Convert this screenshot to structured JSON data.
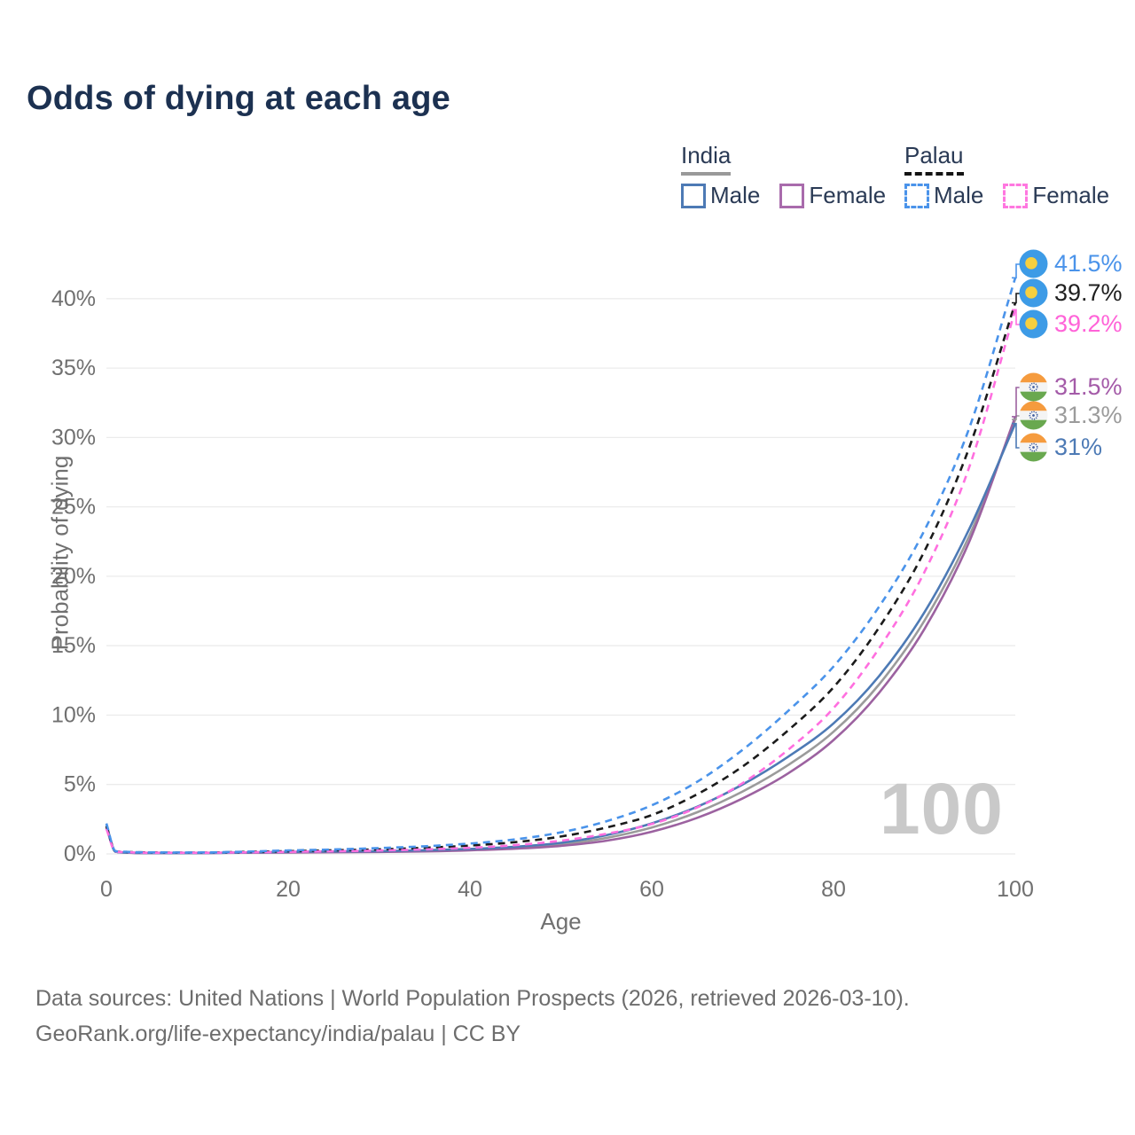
{
  "title": "Odds of dying at each age",
  "watermark": "100",
  "colors": {
    "title_text": "#1c3151",
    "legend_text": "#2a3a55",
    "axis_text": "#707070",
    "gridline": "#ebebeb",
    "watermark": "#c9c9c9",
    "footer_text": "#6d6d6d",
    "india_underline": "#999999",
    "palau_underline": "#141414"
  },
  "legend": {
    "groups": [
      {
        "name": "India",
        "line_style": "solid",
        "underline_color": "#999999",
        "items": [
          {
            "label": "Male",
            "color": "#4d7ab5"
          },
          {
            "label": "Female",
            "color": "#a96bac"
          }
        ]
      },
      {
        "name": "Palau",
        "line_style": "dashed",
        "underline_color": "#141414",
        "items": [
          {
            "label": "Male",
            "color": "#4a93ea"
          },
          {
            "label": "Female",
            "color": "#ff77e0"
          }
        ]
      }
    ]
  },
  "chart_data": {
    "type": "line",
    "title": "Odds of dying at each age",
    "xlabel": "Age",
    "ylabel": "Probability of dying",
    "xlim": [
      0,
      100
    ],
    "ylim": [
      0,
      43
    ],
    "grid": true,
    "legend_position": "top-right",
    "x_ticks": [
      0,
      20,
      40,
      60,
      80,
      100
    ],
    "y_ticks": [
      0,
      5,
      10,
      15,
      20,
      25,
      30,
      35,
      40
    ],
    "y_tick_labels": [
      "0%",
      "5%",
      "10%",
      "15%",
      "20%",
      "25%",
      "30%",
      "35%",
      "40%"
    ],
    "x": [
      0,
      1,
      2,
      3,
      5,
      10,
      15,
      20,
      25,
      30,
      35,
      40,
      45,
      50,
      55,
      60,
      65,
      70,
      75,
      80,
      85,
      90,
      95,
      100
    ],
    "series": [
      {
        "name": "india-total",
        "country": "India",
        "sex": "Total",
        "line": "solid",
        "color": "#9b9b9b",
        "flag": "india",
        "end_label": "31.3%",
        "label_color": "#9b9b9b",
        "values": [
          2.0,
          0.16,
          0.1,
          0.075,
          0.065,
          0.065,
          0.09,
          0.13,
          0.15,
          0.17,
          0.22,
          0.31,
          0.45,
          0.69,
          1.15,
          1.9,
          3.0,
          4.5,
          6.4,
          8.8,
          12.2,
          16.8,
          23.0,
          31.3
        ]
      },
      {
        "name": "india-female",
        "country": "India",
        "sex": "Female",
        "line": "solid",
        "color": "#9c62a0",
        "flag": "india",
        "end_label": "31.5%",
        "label_color": "#a45ba8",
        "values": [
          1.9,
          0.16,
          0.1,
          0.07,
          0.06,
          0.06,
          0.08,
          0.1,
          0.12,
          0.14,
          0.18,
          0.26,
          0.38,
          0.58,
          0.95,
          1.6,
          2.6,
          4.0,
          5.8,
          8.2,
          11.6,
          16.2,
          22.6,
          31.5
        ]
      },
      {
        "name": "india-male",
        "country": "India",
        "sex": "Male",
        "line": "solid",
        "color": "#4d7ab5",
        "flag": "india",
        "end_label": "31%",
        "label_color": "#4d7ab5",
        "values": [
          2.1,
          0.16,
          0.1,
          0.08,
          0.07,
          0.07,
          0.1,
          0.15,
          0.18,
          0.2,
          0.26,
          0.36,
          0.52,
          0.8,
          1.35,
          2.2,
          3.4,
          5.0,
          7.0,
          9.4,
          12.8,
          17.4,
          23.5,
          31.0
        ]
      },
      {
        "name": "palau-total",
        "country": "Palau",
        "sex": "Total",
        "line": "dashed",
        "color": "#1b1b1b",
        "flag": "palau",
        "end_label": "39.7%",
        "label_color": "#1f1f1f",
        "values": [
          2.0,
          0.19,
          0.15,
          0.12,
          0.1,
          0.09,
          0.14,
          0.2,
          0.26,
          0.33,
          0.44,
          0.6,
          0.85,
          1.25,
          1.9,
          2.8,
          4.3,
          6.3,
          8.9,
          12.0,
          16.3,
          21.8,
          29.4,
          39.7
        ]
      },
      {
        "name": "palau-female",
        "country": "Palau",
        "sex": "Female",
        "line": "dashed",
        "color": "#ff6fdf",
        "flag": "palau",
        "end_label": "39.2%",
        "label_color": "#ff63d8",
        "values": [
          1.8,
          0.17,
          0.13,
          0.1,
          0.08,
          0.08,
          0.11,
          0.15,
          0.19,
          0.24,
          0.32,
          0.44,
          0.63,
          0.95,
          1.45,
          2.15,
          3.35,
          5.1,
          7.5,
          10.5,
          14.8,
          20.3,
          28.0,
          39.2
        ]
      },
      {
        "name": "palau-male",
        "country": "Palau",
        "sex": "Male",
        "line": "dashed",
        "color": "#4a93ea",
        "flag": "palau",
        "end_label": "41.5%",
        "label_color": "#4a93ea",
        "values": [
          2.2,
          0.2,
          0.16,
          0.13,
          0.11,
          0.1,
          0.16,
          0.25,
          0.32,
          0.42,
          0.55,
          0.75,
          1.05,
          1.55,
          2.35,
          3.5,
          5.2,
          7.5,
          10.3,
          13.5,
          17.8,
          23.3,
          30.8,
          41.5
        ]
      }
    ]
  },
  "footer": {
    "line1": "Data sources: United Nations | World Population Prospects (2026, retrieved 2026-03-10).",
    "line2": "GeoRank.org/life-expectancy/india/palau | CC BY"
  }
}
